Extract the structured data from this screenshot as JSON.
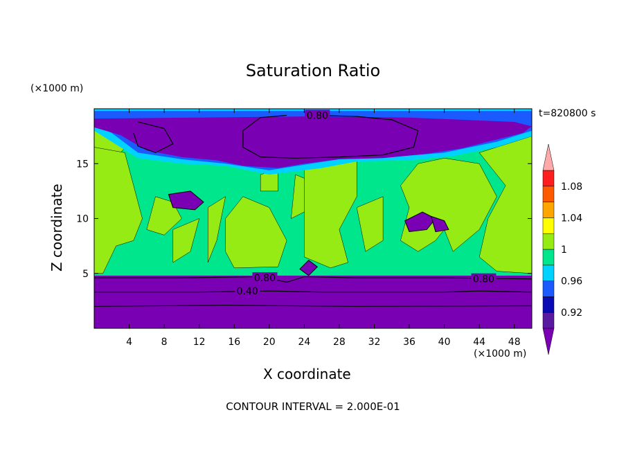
{
  "chart_data": {
    "type": "heatmap",
    "title": "Saturation Ratio",
    "xlabel": "X coordinate",
    "ylabel": "Z coordinate",
    "x_unit_label": "(×1000 m)",
    "y_unit_label": "(×1000 m)",
    "time_label": "t=820800 s",
    "footer": "CONTOUR INTERVAL = 2.000E-01",
    "xlim": [
      0,
      50
    ],
    "ylim": [
      0,
      20
    ],
    "x_ticks": [
      4,
      8,
      12,
      16,
      20,
      24,
      28,
      32,
      36,
      40,
      44,
      48
    ],
    "y_ticks": [
      5,
      10,
      15
    ],
    "colorbar": {
      "levels": [
        0.9,
        0.92,
        0.94,
        0.96,
        0.98,
        1.0,
        1.02,
        1.04,
        1.06,
        1.08,
        1.1
      ],
      "tick_labels": [
        "0.92",
        "0.96",
        "1",
        "1.04",
        "1.08"
      ],
      "tick_values": [
        0.92,
        0.96,
        1.0,
        1.04,
        1.08
      ],
      "colors": [
        "#5a1aa0",
        "#0a0ab4",
        "#1a5aff",
        "#00d2ff",
        "#00e68c",
        "#96eb14",
        "#ffff00",
        "#ffa500",
        "#ff5a00",
        "#ff1e1e"
      ],
      "under_color": "#7a00b4",
      "over_color": "#ffaaaa"
    },
    "contour_labels": [
      {
        "text": "0.80",
        "x": 25.5,
        "z": 19.4
      },
      {
        "text": "0.80",
        "x": 19.5,
        "z": 4.6
      },
      {
        "text": "0.40",
        "x": 17.5,
        "z": 3.4
      },
      {
        "text": "0.80",
        "x": 44.5,
        "z": 4.5
      }
    ],
    "colors": {
      "dry": "#7a00b4",
      "teal": "#00e68c",
      "green": "#96eb14",
      "cyan": "#00d2ff",
      "blue": "#1a5aff",
      "contour": "#000000"
    }
  }
}
